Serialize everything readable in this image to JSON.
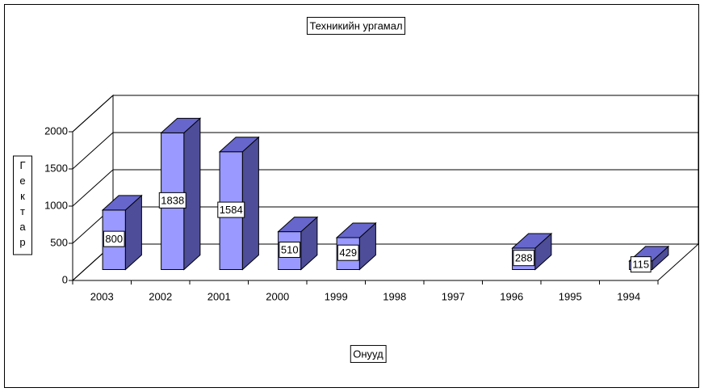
{
  "chart_data": {
    "type": "bar3d",
    "title": "Техникийн ургамал",
    "y_label": "Гектар",
    "x_label": "Онууд",
    "categories": [
      "2003",
      "2002",
      "2001",
      "2000",
      "1999",
      "1998",
      "1997",
      "1996",
      "1995",
      "1994"
    ],
    "values": [
      800,
      1838,
      1584,
      510,
      429,
      null,
      null,
      288,
      null,
      115
    ],
    "color": "#9999ff",
    "ylim": [
      0,
      2000
    ],
    "yticks": [
      0,
      500,
      1000,
      1500,
      2000
    ],
    "grid": true
  }
}
